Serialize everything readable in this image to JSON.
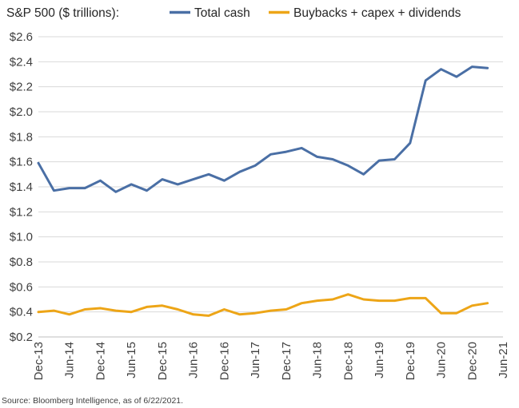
{
  "chart_data": {
    "type": "line",
    "title": "S&P 500 ($ trillions):",
    "xlabel": "",
    "ylabel": "",
    "ylim": [
      0.2,
      2.6
    ],
    "y_ticks": [
      0.2,
      0.4,
      0.6,
      0.8,
      1.0,
      1.2,
      1.4,
      1.6,
      1.8,
      2.0,
      2.2,
      2.4,
      2.6
    ],
    "y_tick_labels": [
      "$0.2",
      "$0.4",
      "$0.6",
      "$0.8",
      "$1.0",
      "$1.2",
      "$1.4",
      "$1.6",
      "$1.8",
      "$2.0",
      "$2.2",
      "$2.4",
      "$2.6"
    ],
    "x_tick_labels": [
      "Dec-13",
      "Jun-14",
      "Dec-14",
      "Jun-15",
      "Dec-15",
      "Jun-16",
      "Dec-16",
      "Jun-17",
      "Dec-17",
      "Jun-18",
      "Dec-18",
      "Jun-19",
      "Dec-19",
      "Jun-20",
      "Dec-20",
      "Jun-21"
    ],
    "x": [
      "Dec-13",
      "Mar-14",
      "Jun-14",
      "Sep-14",
      "Dec-14",
      "Mar-15",
      "Jun-15",
      "Sep-15",
      "Dec-15",
      "Mar-16",
      "Jun-16",
      "Sep-16",
      "Dec-16",
      "Mar-17",
      "Jun-17",
      "Sep-17",
      "Dec-17",
      "Mar-18",
      "Jun-18",
      "Sep-18",
      "Dec-18",
      "Mar-19",
      "Jun-19",
      "Sep-19",
      "Dec-19",
      "Mar-20",
      "Jun-20",
      "Sep-20",
      "Dec-20",
      "Mar-21"
    ],
    "series": [
      {
        "name": "Total cash",
        "color": "#4A6FA5",
        "values": [
          1.59,
          1.37,
          1.39,
          1.39,
          1.45,
          1.36,
          1.42,
          1.37,
          1.46,
          1.42,
          1.46,
          1.5,
          1.45,
          1.52,
          1.57,
          1.66,
          1.68,
          1.71,
          1.64,
          1.62,
          1.57,
          1.5,
          1.61,
          1.62,
          1.75,
          2.25,
          2.34,
          2.28,
          2.36,
          2.35
        ]
      },
      {
        "name": "Buybacks + capex + dividends",
        "color": "#EDA517",
        "values": [
          0.4,
          0.41,
          0.38,
          0.42,
          0.43,
          0.41,
          0.4,
          0.44,
          0.45,
          0.42,
          0.38,
          0.37,
          0.42,
          0.38,
          0.39,
          0.41,
          0.42,
          0.47,
          0.49,
          0.5,
          0.54,
          0.5,
          0.49,
          0.49,
          0.51,
          0.51,
          0.39,
          0.39,
          0.45,
          0.47
        ]
      }
    ],
    "source": "Source: Bloomberg Intelligence, as of 6/22/2021."
  }
}
